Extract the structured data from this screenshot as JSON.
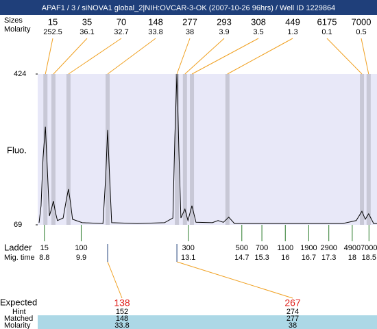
{
  "header": {
    "title": "APAF1 / 3 / siNOVA1 global_2|NIH:OVCAR-3-OK (2007-10-26 96hrs) / Well ID 1229864"
  },
  "labels": {
    "sizes": "Sizes",
    "molarity_top": "Molarity",
    "ladder": "Ladder",
    "mig_time": "Mig. time",
    "expected": "Expected",
    "hint": "Hint",
    "matched": "Matched",
    "molarity_bottom": "Molarity"
  },
  "chart_data": {
    "type": "line",
    "ylabel": "Fluo.",
    "color": "#000000",
    "xlim": [
      8.6,
      18.74
    ],
    "ylim": [
      69,
      424
    ],
    "yticks": [
      69,
      424
    ],
    "x": [
      8.64,
      8.7,
      8.76,
      8.83,
      8.89,
      8.95,
      9.01,
      9.07,
      9.13,
      9.19,
      9.36,
      9.46,
      9.52,
      9.58,
      9.64,
      9.93,
      10.55,
      10.63,
      10.69,
      10.75,
      10.81,
      11.57,
      12.39,
      12.64,
      12.7,
      12.76,
      12.82,
      12.88,
      13.0,
      13.09,
      13.21,
      13.33,
      13.82,
      13.99,
      14.15,
      14.31,
      14.48,
      15.67,
      17.72,
      18.12,
      18.29,
      18.39,
      18.49,
      18.64,
      18.74
    ],
    "values": [
      74,
      114,
      227,
      300,
      195,
      90,
      106,
      125,
      98,
      79,
      85,
      130,
      153,
      122,
      82,
      74,
      72,
      179,
      292,
      179,
      74,
      72,
      74,
      85,
      276,
      424,
      243,
      85,
      106,
      79,
      114,
      75,
      74,
      79,
      75,
      87,
      72,
      72,
      72,
      79,
      101,
      82,
      95,
      72,
      72
    ],
    "peaks": [
      {
        "size": 15,
        "molarity": 252.5,
        "time": 8.83
      },
      {
        "size": 35,
        "molarity": 36.1,
        "time": 9.07
      },
      {
        "size": 70,
        "molarity": 32.7,
        "time": 9.52
      },
      {
        "size": 148,
        "molarity": 33.8,
        "time": 10.69
      },
      {
        "size": 277,
        "molarity": 38,
        "time": 12.76
      },
      {
        "size": 293,
        "molarity": 3.9,
        "time": 13.0
      },
      {
        "size": 308,
        "molarity": 3.5,
        "time": 13.21
      },
      {
        "size": 449,
        "molarity": 1.3,
        "time": 14.27
      },
      {
        "size": 6175,
        "molarity": 0.1,
        "time": 18.29
      },
      {
        "size": 7000,
        "molarity": 0.5,
        "time": 18.49
      }
    ],
    "ladder": [
      {
        "size": 15,
        "time": 8.8
      },
      {
        "size": 100,
        "time": 9.9
      },
      {
        "size": 300,
        "time": 13.1
      },
      {
        "size": 500,
        "time": 14.7
      },
      {
        "size": 700,
        "time": 15.3
      },
      {
        "size": 1100,
        "time": 16
      },
      {
        "size": 1900,
        "time": 16.7
      },
      {
        "size": 2900,
        "time": 17.3
      },
      {
        "size": 4900,
        "time": 18
      },
      {
        "size": 7000,
        "time": 18.5
      }
    ],
    "expected": [
      {
        "size": 138,
        "hint": 152,
        "matched": 148,
        "molarity": 33.8
      },
      {
        "size": 267,
        "hint": 274,
        "matched": 277,
        "molarity": 38
      }
    ]
  }
}
